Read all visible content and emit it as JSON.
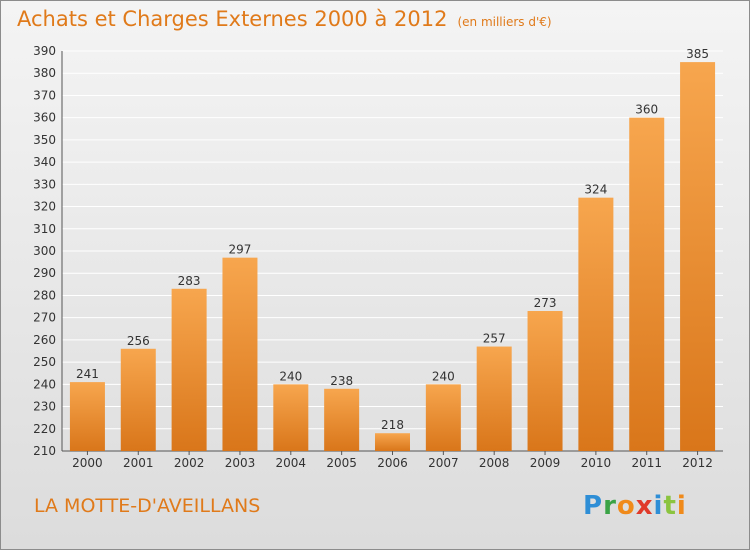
{
  "title": "Achats et Charges Externes 2000 à 2012",
  "unit": "(en milliers d'€)",
  "place": "LA MOTTE-D'AVEILLANS",
  "brand": {
    "letters": [
      "P",
      "r",
      "o",
      "x",
      "i",
      "t",
      "i"
    ],
    "colors": [
      "#2e8ed6",
      "#3aa346",
      "#f08a1a",
      "#e03a2a",
      "#2e8ed6",
      "#8bc43f",
      "#f08a1a"
    ]
  },
  "colors": {
    "accent": "#e07a1a",
    "bar_light": "#f7a64e",
    "bar_dark": "#d9761a"
  },
  "chart_data": {
    "type": "bar",
    "categories": [
      "2000",
      "2001",
      "2002",
      "2003",
      "2004",
      "2005",
      "2006",
      "2007",
      "2008",
      "2009",
      "2010",
      "2011",
      "2012"
    ],
    "values": [
      241,
      256,
      283,
      297,
      240,
      238,
      218,
      240,
      257,
      273,
      324,
      360,
      385
    ],
    "ylim": [
      210,
      390
    ],
    "yticks": [
      210,
      220,
      230,
      240,
      250,
      260,
      270,
      280,
      290,
      300,
      310,
      320,
      330,
      340,
      350,
      360,
      370,
      380,
      390
    ],
    "grid": true
  }
}
